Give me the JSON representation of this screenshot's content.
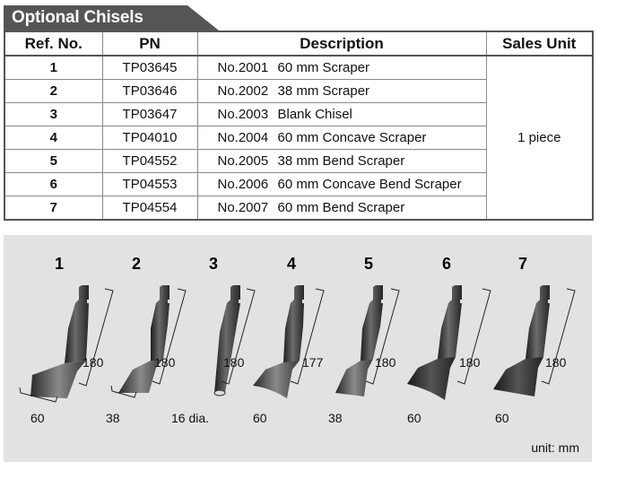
{
  "title": "Optional Chisels",
  "table": {
    "headers": {
      "ref": "Ref. No.",
      "pn": "PN",
      "description": "Description",
      "sales_unit": "Sales Unit"
    },
    "rows": [
      {
        "ref": "1",
        "pn": "TP03645",
        "model": "No.2001",
        "name": "60 mm Scraper"
      },
      {
        "ref": "2",
        "pn": "TP03646",
        "model": "No.2002",
        "name": "38 mm Scraper"
      },
      {
        "ref": "3",
        "pn": "TP03647",
        "model": "No.2003",
        "name": "Blank Chisel"
      },
      {
        "ref": "4",
        "pn": "TP04010",
        "model": "No.2004",
        "name": "60 mm Concave Scraper"
      },
      {
        "ref": "5",
        "pn": "TP04552",
        "model": "No.2005",
        "name": "38 mm Bend Scraper"
      },
      {
        "ref": "6",
        "pn": "TP04553",
        "model": "No.2006",
        "name": "60 mm Concave Bend Scraper"
      },
      {
        "ref": "7",
        "pn": "TP04554",
        "model": "No.2007",
        "name": "60 mm Bend Scraper"
      }
    ],
    "sales_unit_value": "1 piece"
  },
  "illustrations": [
    {
      "number": "1",
      "length": "180",
      "width": "60"
    },
    {
      "number": "2",
      "length": "180",
      "width": "38"
    },
    {
      "number": "3",
      "length": "180",
      "width": "16 dia."
    },
    {
      "number": "4",
      "length": "177",
      "width": "60"
    },
    {
      "number": "5",
      "length": "180",
      "width": "38"
    },
    {
      "number": "6",
      "length": "180",
      "width": "60"
    },
    {
      "number": "7",
      "length": "180",
      "width": "60"
    }
  ],
  "unit_note": "unit: mm",
  "colors": {
    "title_bg": "#555555",
    "panel_bg": "#e2e2e2",
    "chisel_dark": "#3a3a3a"
  }
}
